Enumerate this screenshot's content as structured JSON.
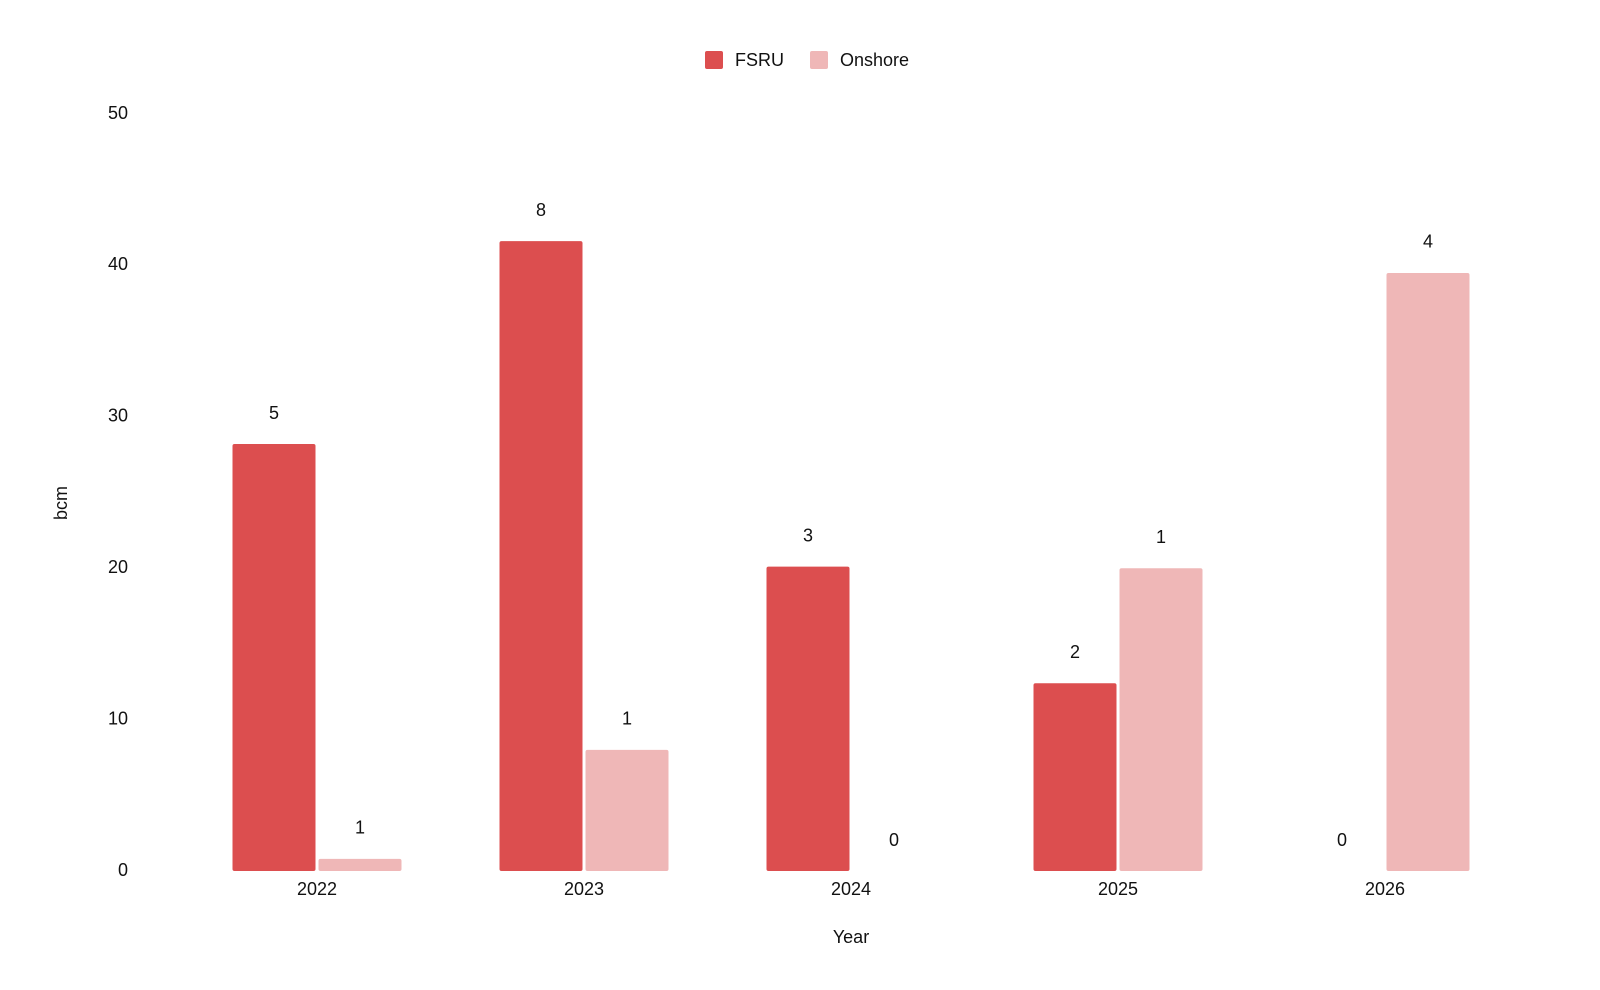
{
  "chart_data": {
    "type": "bar",
    "x_label": "Year",
    "y_label": "bcm",
    "categories": [
      "2022",
      "2023",
      "2024",
      "2025",
      "2026"
    ],
    "series": [
      {
        "name": "FSRU",
        "color": "#dc4e4f",
        "values": [
          28.2,
          41.6,
          20.1,
          12.4,
          0
        ],
        "counts": [
          5,
          8,
          3,
          2,
          0
        ]
      },
      {
        "name": "Onshore",
        "color": "#efb7b7",
        "values": [
          0.8,
          8.0,
          0,
          20.0,
          39.5
        ],
        "counts": [
          1,
          1,
          0,
          1,
          4
        ]
      }
    ],
    "ylim": [
      0,
      50
    ],
    "yticks": [
      0,
      10,
      20,
      30,
      40,
      50
    ],
    "grid": false,
    "legend": "top"
  }
}
